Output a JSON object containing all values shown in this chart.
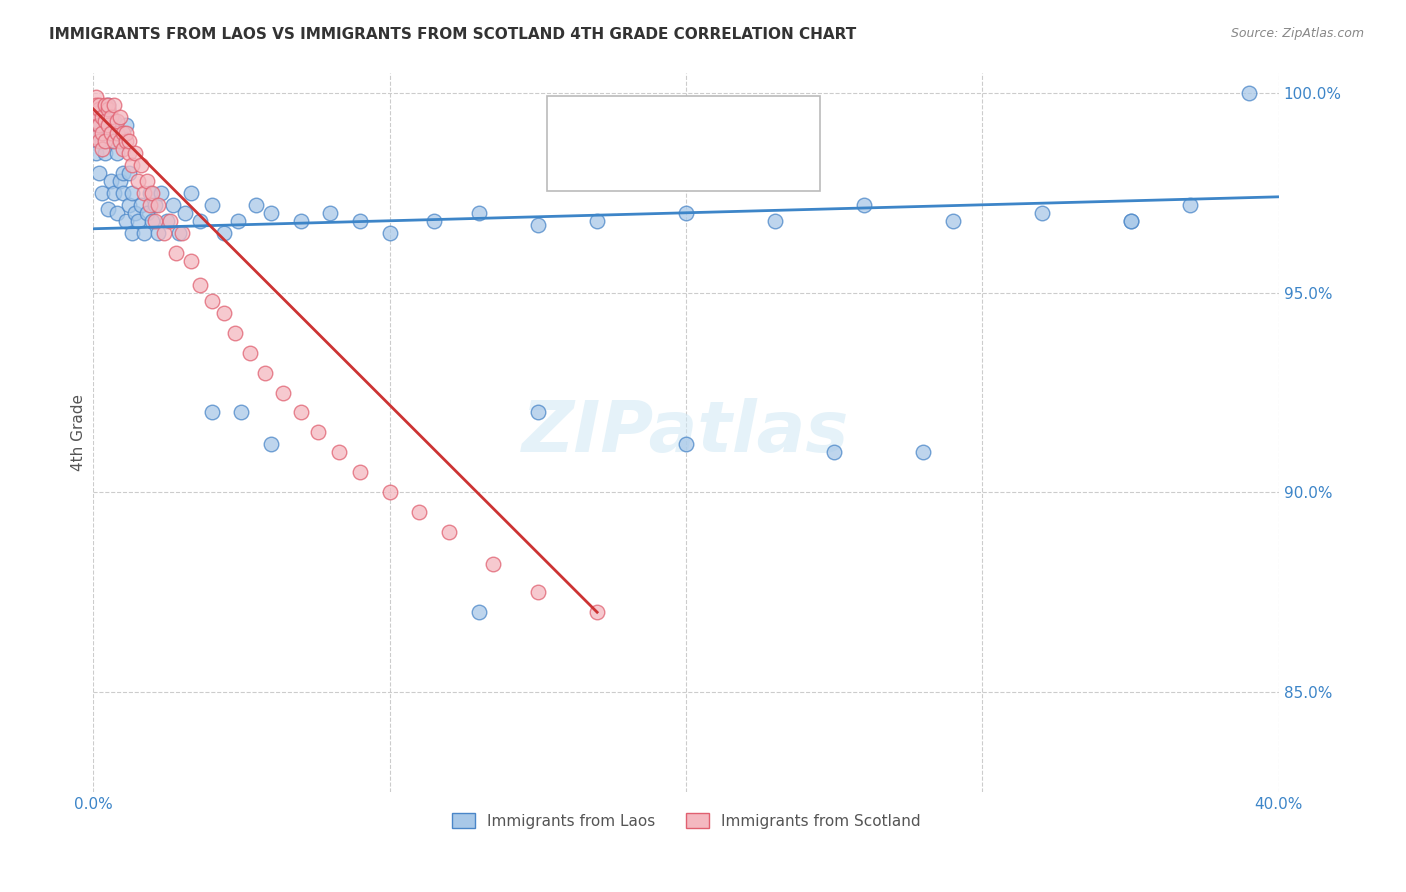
{
  "title": "IMMIGRANTS FROM LAOS VS IMMIGRANTS FROM SCOTLAND 4TH GRADE CORRELATION CHART",
  "source": "Source: ZipAtlas.com",
  "ylabel": "4th Grade",
  "x_min": 0.0,
  "x_max": 0.4,
  "y_min": 0.825,
  "y_max": 1.005,
  "y_ticks": [
    0.85,
    0.9,
    0.95,
    1.0
  ],
  "y_tick_labels": [
    "85.0%",
    "90.0%",
    "95.0%",
    "100.0%"
  ],
  "x_tick_positions": [
    0.0,
    0.1,
    0.2,
    0.3,
    0.4
  ],
  "x_tick_labels": [
    "0.0%",
    "",
    "",
    "",
    "40.0%"
  ],
  "color_laos_fill": "#a8c8e8",
  "color_laos_edge": "#4a86c8",
  "color_scot_fill": "#f4b8c0",
  "color_scot_edge": "#e06070",
  "color_laos_line": "#3d85c8",
  "color_scot_line": "#cc3333",
  "color_r_laos": "#1a56cc",
  "color_r_scot": "#cc2222",
  "color_n_laos": "#1a56cc",
  "color_n_scot": "#cc2222",
  "watermark": "ZIPatlas",
  "laos_x": [
    0.001,
    0.001,
    0.002,
    0.002,
    0.003,
    0.003,
    0.004,
    0.004,
    0.005,
    0.005,
    0.005,
    0.006,
    0.006,
    0.007,
    0.007,
    0.008,
    0.008,
    0.009,
    0.009,
    0.01,
    0.01,
    0.011,
    0.011,
    0.012,
    0.012,
    0.013,
    0.013,
    0.014,
    0.015,
    0.016,
    0.017,
    0.018,
    0.019,
    0.02,
    0.021,
    0.022,
    0.023,
    0.025,
    0.027,
    0.029,
    0.031,
    0.033,
    0.036,
    0.04,
    0.044,
    0.049,
    0.055,
    0.06,
    0.07,
    0.08,
    0.09,
    0.1,
    0.115,
    0.13,
    0.15,
    0.17,
    0.2,
    0.23,
    0.26,
    0.29,
    0.32,
    0.35,
    0.37,
    0.39,
    0.15,
    0.2,
    0.25,
    0.13,
    0.28,
    0.04,
    0.05,
    0.06,
    0.35
  ],
  "laos_y": [
    0.99,
    0.985,
    0.992,
    0.98,
    0.988,
    0.975,
    0.985,
    0.993,
    0.996,
    0.971,
    0.997,
    0.978,
    0.988,
    0.975,
    0.993,
    0.97,
    0.985,
    0.978,
    0.99,
    0.975,
    0.98,
    0.968,
    0.992,
    0.972,
    0.98,
    0.965,
    0.975,
    0.97,
    0.968,
    0.972,
    0.965,
    0.97,
    0.975,
    0.968,
    0.972,
    0.965,
    0.975,
    0.968,
    0.972,
    0.965,
    0.97,
    0.975,
    0.968,
    0.972,
    0.965,
    0.968,
    0.972,
    0.97,
    0.968,
    0.97,
    0.968,
    0.965,
    0.968,
    0.97,
    0.967,
    0.968,
    0.97,
    0.968,
    0.972,
    0.968,
    0.97,
    0.968,
    0.972,
    1.0,
    0.92,
    0.912,
    0.91,
    0.87,
    0.91,
    0.92,
    0.92,
    0.912,
    0.968
  ],
  "scot_x": [
    0.001,
    0.001,
    0.001,
    0.001,
    0.001,
    0.002,
    0.002,
    0.002,
    0.002,
    0.003,
    0.003,
    0.003,
    0.004,
    0.004,
    0.004,
    0.005,
    0.005,
    0.005,
    0.006,
    0.006,
    0.007,
    0.007,
    0.008,
    0.008,
    0.009,
    0.009,
    0.01,
    0.01,
    0.011,
    0.011,
    0.012,
    0.012,
    0.013,
    0.014,
    0.015,
    0.016,
    0.017,
    0.018,
    0.019,
    0.02,
    0.021,
    0.022,
    0.024,
    0.026,
    0.028,
    0.03,
    0.033,
    0.036,
    0.04,
    0.044,
    0.048,
    0.053,
    0.058,
    0.064,
    0.07,
    0.076,
    0.083,
    0.09,
    0.1,
    0.11,
    0.12,
    0.135,
    0.15,
    0.17
  ],
  "scot_y": [
    0.999,
    0.997,
    0.993,
    0.989,
    0.995,
    0.996,
    0.992,
    0.988,
    0.997,
    0.994,
    0.99,
    0.986,
    0.997,
    0.993,
    0.988,
    0.996,
    0.992,
    0.997,
    0.99,
    0.994,
    0.988,
    0.997,
    0.99,
    0.993,
    0.988,
    0.994,
    0.99,
    0.986,
    0.988,
    0.99,
    0.985,
    0.988,
    0.982,
    0.985,
    0.978,
    0.982,
    0.975,
    0.978,
    0.972,
    0.975,
    0.968,
    0.972,
    0.965,
    0.968,
    0.96,
    0.965,
    0.958,
    0.952,
    0.948,
    0.945,
    0.94,
    0.935,
    0.93,
    0.925,
    0.92,
    0.915,
    0.91,
    0.905,
    0.9,
    0.895,
    0.89,
    0.882,
    0.875,
    0.87
  ],
  "laos_trend_x": [
    0.0,
    0.4
  ],
  "laos_trend_y": [
    0.966,
    0.974
  ],
  "scot_trend_x": [
    0.0,
    0.17
  ],
  "scot_trend_y": [
    0.996,
    0.87
  ]
}
